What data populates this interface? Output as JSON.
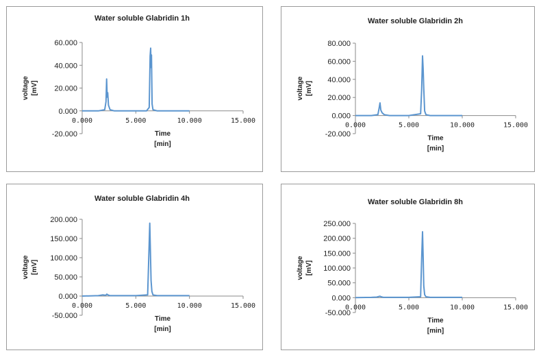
{
  "chart_data": [
    {
      "type": "line",
      "title": "Water soluble Glabridin 1h",
      "xlabel": [
        "Time",
        "[min]"
      ],
      "ylabel": [
        "voltage",
        "[mV]"
      ],
      "xlim": [
        0,
        15
      ],
      "ylim": [
        -20,
        60
      ],
      "xticks": [
        "0.000",
        "5.000",
        "10.000",
        "15.000"
      ],
      "yticks": [
        "-20.000",
        "0.000",
        "20.000",
        "40.000",
        "60.000"
      ],
      "xtick_values": [
        0,
        5,
        10,
        15
      ],
      "ytick_values": [
        -20,
        0,
        20,
        40,
        60
      ],
      "series": [
        {
          "x": [
            0,
            1.5,
            2.1,
            2.22,
            2.28,
            2.33,
            2.38,
            2.45,
            2.6,
            3.0,
            4.5,
            6.0,
            6.25,
            6.33,
            6.38,
            6.42,
            6.46,
            6.52,
            6.6,
            7.0,
            9.0,
            10.0
          ],
          "y": [
            0,
            0,
            1,
            8,
            28,
            12,
            16,
            5,
            1,
            0,
            0,
            0,
            3,
            48,
            55,
            38,
            49,
            6,
            1,
            0,
            0,
            0
          ]
        }
      ]
    },
    {
      "type": "line",
      "title": "Water soluble Glabridin 2h",
      "xlabel": [
        "Time",
        "[min]"
      ],
      "ylabel": [
        "voltage",
        "[mV]"
      ],
      "xlim": [
        0,
        15
      ],
      "ylim": [
        -20,
        80
      ],
      "xticks": [
        "0.000",
        "5.000",
        "10.000",
        "15.000"
      ],
      "yticks": [
        "-20.000",
        "0.000",
        "20.000",
        "40.000",
        "60.000",
        "80.000"
      ],
      "xtick_values": [
        0,
        5,
        10,
        15
      ],
      "ytick_values": [
        -20,
        0,
        20,
        40,
        60,
        80
      ],
      "series": [
        {
          "x": [
            0,
            1.5,
            2.1,
            2.22,
            2.3,
            2.38,
            2.5,
            2.7,
            3.2,
            5.0,
            6.1,
            6.2,
            6.28,
            6.34,
            6.4,
            6.48,
            6.6,
            7.0,
            9.0,
            10.0
          ],
          "y": [
            0,
            0,
            1,
            8,
            14,
            6,
            3,
            1,
            0,
            0,
            2,
            28,
            66,
            52,
            30,
            5,
            1,
            0,
            0,
            0
          ]
        }
      ]
    },
    {
      "type": "line",
      "title": "Water soluble Glabridin 4h",
      "xlabel": [
        "Time",
        "[min]"
      ],
      "ylabel": [
        "voltage",
        "[mV]"
      ],
      "xlim": [
        0,
        15
      ],
      "ylim": [
        -50,
        200
      ],
      "xticks": [
        "0.000",
        "5.000",
        "10.000",
        "15.000"
      ],
      "yticks": [
        "-50.000",
        "0.000",
        "50.000",
        "100.000",
        "150.000",
        "200.000"
      ],
      "xtick_values": [
        0,
        5,
        10,
        15
      ],
      "ytick_values": [
        -50,
        0,
        50,
        100,
        150,
        200
      ],
      "series": [
        {
          "x": [
            0,
            1.5,
            1.9,
            2.2,
            2.3,
            2.4,
            2.6,
            3.0,
            5.0,
            6.1,
            6.22,
            6.3,
            6.36,
            6.42,
            6.5,
            6.6,
            7.0,
            9.0,
            10.0
          ],
          "y": [
            0,
            1,
            3,
            2,
            5,
            3,
            1,
            1,
            1,
            3,
            110,
            190,
            120,
            40,
            12,
            3,
            1,
            1,
            1
          ]
        }
      ]
    },
    {
      "type": "line",
      "title": "Water soluble Glabridin  8h",
      "xlabel": [
        "Time",
        "[min]"
      ],
      "ylabel": [
        "voltage",
        "[mV]"
      ],
      "xlim": [
        0,
        15
      ],
      "ylim": [
        -50,
        250
      ],
      "xticks": [
        "0.000",
        "5.000",
        "10.000",
        "15.000"
      ],
      "yticks": [
        "-50.000",
        "0.000",
        "50.000",
        "100.000",
        "150.000",
        "200.000",
        "250.000"
      ],
      "xtick_values": [
        0,
        5,
        10,
        15
      ],
      "ytick_values": [
        -50,
        0,
        50,
        100,
        150,
        200,
        250
      ],
      "series": [
        {
          "x": [
            0,
            1.5,
            2.0,
            2.3,
            2.4,
            2.6,
            3.0,
            5.0,
            6.1,
            6.2,
            6.28,
            6.34,
            6.4,
            6.48,
            6.6,
            7.0,
            9.0,
            10.0
          ],
          "y": [
            0,
            1,
            2,
            5,
            3,
            1,
            1,
            1,
            3,
            130,
            222,
            140,
            40,
            10,
            3,
            1,
            1,
            1
          ]
        }
      ]
    }
  ]
}
